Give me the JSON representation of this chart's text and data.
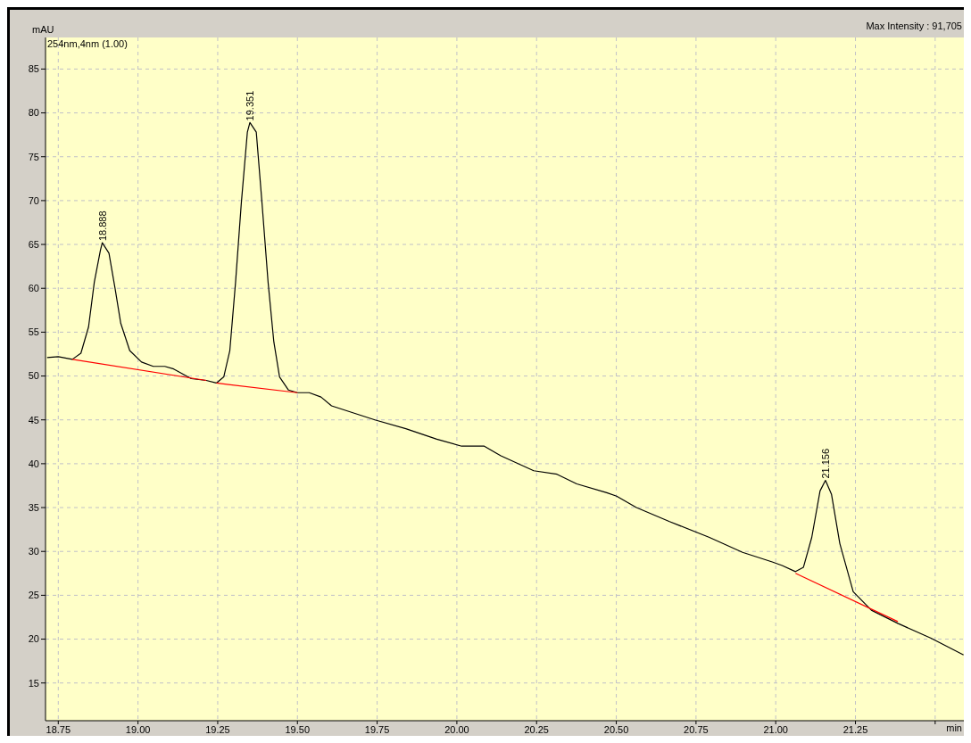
{
  "chart_data": {
    "type": "line",
    "ylabel": "mAU",
    "xlabel": "min",
    "annotations": [
      "254nm,4nm (1.00)",
      "Max Intensity : 91,705",
      {
        "text": "18.888",
        "x": 18.888,
        "y": 65.2
      },
      {
        "text": "19.351",
        "x": 19.351,
        "y": 78.9
      },
      {
        "text": "21.156",
        "x": 21.156,
        "y": 38.1
      }
    ],
    "xlim": [
      18.71,
      21.59
    ],
    "xticks": [
      18.75,
      {
        "value": 19,
        "label": "19.00"
      },
      19.25,
      {
        "value": 19.5,
        "label": "19.50"
      },
      19.75,
      {
        "value": 20,
        "label": "20.00"
      },
      20.25,
      {
        "value": 20.5,
        "label": "20.50"
      },
      20.75,
      {
        "value": 21,
        "label": "21.00"
      },
      21.25,
      {
        "value": 21.5,
        "label": null
      }
    ],
    "ylim": [
      10.7,
      88.6
    ],
    "yticks": [
      15,
      20,
      25,
      30,
      35,
      40,
      45,
      50,
      55,
      60,
      65,
      70,
      75,
      80,
      85
    ],
    "grid": true,
    "legend": false,
    "marker": "none",
    "line_style": "solid",
    "series": [
      {
        "color": "#000000",
        "x": [
          18.715,
          18.75,
          18.794,
          18.821,
          18.845,
          18.863,
          18.882,
          18.888,
          18.909,
          18.928,
          18.946,
          18.974,
          19.011,
          19.048,
          19.084,
          19.112,
          19.167,
          19.214,
          19.246,
          19.269,
          19.288,
          19.306,
          19.324,
          19.343,
          19.351,
          19.371,
          19.389,
          19.408,
          19.426,
          19.444,
          19.472,
          19.5,
          19.537,
          19.574,
          19.607,
          19.743,
          19.84,
          19.937,
          20.015,
          20.063,
          20.086,
          20.138,
          20.241,
          20.314,
          20.376,
          20.47,
          20.501,
          20.563,
          20.667,
          20.792,
          20.896,
          20.989,
          21.02,
          21.062,
          21.087,
          21.113,
          21.139,
          21.156,
          21.175,
          21.201,
          21.243,
          21.3,
          21.383,
          21.487,
          21.589
        ],
        "values": [
          52.1,
          52.2,
          51.9,
          52.6,
          55.6,
          60.7,
          64.3,
          65.2,
          64.0,
          60.0,
          56.0,
          52.9,
          51.6,
          51.1,
          51.1,
          50.8,
          49.7,
          49.5,
          49.2,
          49.9,
          52.9,
          60.7,
          69.7,
          77.8,
          78.9,
          77.8,
          69.7,
          60.7,
          53.9,
          49.9,
          48.4,
          48.1,
          48.1,
          47.6,
          46.6,
          45.0,
          44.0,
          42.8,
          42.0,
          42.0,
          42.0,
          40.9,
          39.2,
          38.8,
          37.7,
          36.7,
          36.3,
          35.0,
          33.4,
          31.6,
          29.9,
          28.8,
          28.4,
          27.7,
          28.2,
          31.6,
          36.9,
          38.1,
          36.5,
          30.9,
          25.4,
          23.3,
          21.8,
          20.1,
          18.2
        ]
      },
      {
        "color": "#ff0000",
        "x": [
          18.794,
          19.214
        ],
        "values": [
          51.9,
          49.5
        ]
      },
      {
        "color": "#ff0000",
        "x": [
          19.246,
          19.5
        ],
        "values": [
          49.2,
          48.1
        ]
      },
      {
        "color": "#ff0000",
        "x": [
          21.062,
          21.383
        ],
        "values": [
          27.5,
          22.0
        ]
      }
    ]
  }
}
